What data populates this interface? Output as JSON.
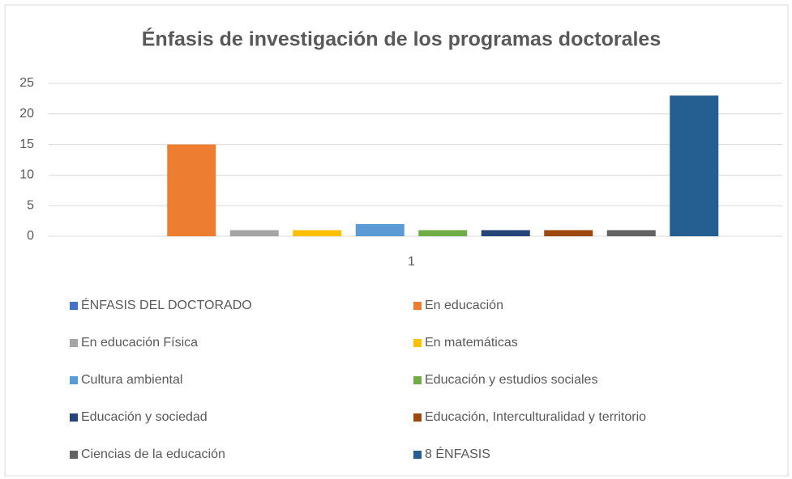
{
  "chart_data": {
    "type": "bar",
    "title": "Énfasis de investigación de los programas doctorales",
    "categories": [
      "1"
    ],
    "series": [
      {
        "name": "ÉNFASIS DEL DOCTORADO",
        "color": "#4472c4",
        "values": [
          0
        ]
      },
      {
        "name": "En educación",
        "color": "#ed7d31",
        "values": [
          15
        ]
      },
      {
        "name": "En educación Física",
        "color": "#a5a5a5",
        "values": [
          1
        ]
      },
      {
        "name": "En matemáticas",
        "color": "#ffc000",
        "values": [
          1
        ]
      },
      {
        "name": "Cultura ambiental",
        "color": "#5b9bd5",
        "values": [
          2
        ]
      },
      {
        "name": "Educación y estudios sociales",
        "color": "#70ad47",
        "values": [
          1
        ]
      },
      {
        "name": "Educación y sociedad",
        "color": "#264478",
        "values": [
          1
        ]
      },
      {
        "name": "Educación, Interculturalidad y territorio",
        "color": "#9e480e",
        "values": [
          1
        ]
      },
      {
        "name": "Ciencias de la educación",
        "color": "#636363",
        "values": [
          1
        ]
      },
      {
        "name": "8 ÉNFASIS",
        "color": "#255e91",
        "values": [
          23
        ]
      }
    ],
    "ylim": [
      0,
      25
    ],
    "yticks": [
      0,
      5,
      10,
      15,
      20,
      25
    ],
    "grid": true,
    "legend": "bottom"
  }
}
